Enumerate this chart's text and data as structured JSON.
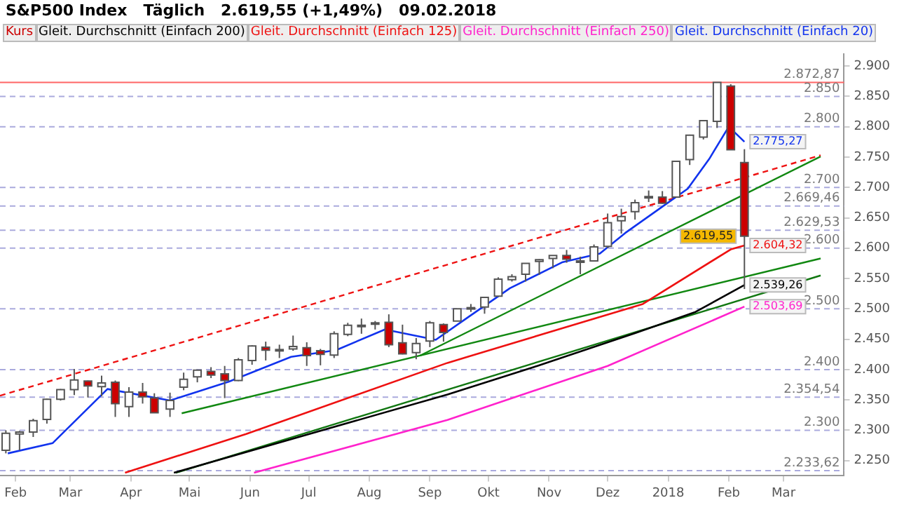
{
  "chart_data": {
    "type": "candlestick",
    "title": "S&P500 Index   Täglich   2.619,55 (+1,49%)   09.02.2018",
    "legend": "top left",
    "grid": false,
    "xlim": [
      "2017-01-24",
      "2018-04-01"
    ],
    "xticks": [
      {
        "value": "2017-02-01",
        "label": "Feb"
      },
      {
        "value": "2017-03-01",
        "label": "Mar"
      },
      {
        "value": "2017-04-01",
        "label": "Apr"
      },
      {
        "value": "2017-05-01",
        "label": "Mai"
      },
      {
        "value": "2017-06-01",
        "label": "Jun"
      },
      {
        "value": "2017-07-01",
        "label": "Jul"
      },
      {
        "value": "2017-08-01",
        "label": "Aug"
      },
      {
        "value": "2017-09-01",
        "label": "Sep"
      },
      {
        "value": "2017-10-01",
        "label": "Okt"
      },
      {
        "value": "2017-11-01",
        "label": "Nov"
      },
      {
        "value": "2017-12-01",
        "label": "Dez"
      },
      {
        "value": "2018-01-01",
        "label": "2018"
      },
      {
        "value": "2018-02-01",
        "label": "Feb"
      },
      {
        "value": "2018-03-01",
        "label": "Mar"
      }
    ],
    "ylim": [
      2225,
      2920
    ],
    "yticks": [
      {
        "value": 2250,
        "label": "2.250"
      },
      {
        "value": 2300,
        "label": "2.300"
      },
      {
        "value": 2350,
        "label": "2.350"
      },
      {
        "value": 2400,
        "label": "2.400"
      },
      {
        "value": 2450,
        "label": "2.450"
      },
      {
        "value": 2500,
        "label": "2.500"
      },
      {
        "value": 2550,
        "label": "2.550"
      },
      {
        "value": 2600,
        "label": "2.600"
      },
      {
        "value": 2650,
        "label": "2.650"
      },
      {
        "value": 2700,
        "label": "2.700"
      },
      {
        "value": 2750,
        "label": "2.750"
      },
      {
        "value": 2800,
        "label": "2.800"
      },
      {
        "value": 2850,
        "label": "2.850"
      },
      {
        "value": 2900,
        "label": "2.900"
      }
    ],
    "series": [
      {
        "name": "Kurs",
        "type": "candlestick",
        "color": "#cc0000",
        "colors": [
          "#ffffff",
          "#ffffff",
          "#ffffff",
          "#ffffff",
          "#ffffff",
          "#ffffff",
          "#cc0000",
          "#ffffff",
          "#cc0000",
          "#ffffff",
          "#cc0000",
          "#cc0000",
          "#ffffff",
          "#ffffff",
          "#ffffff",
          "#cc0000",
          "#cc0000",
          "#ffffff",
          "#ffffff",
          "#cc0000",
          "#ffffff",
          "#ffffff",
          "#cc0000",
          "#cc0000",
          "#ffffff",
          "#ffffff",
          "#cc0000",
          "#ffffff",
          "#cc0000",
          "#cc0000",
          "#ffffff",
          "#ffffff",
          "#cc0000",
          "#ffffff",
          "#ffffff",
          "#ffffff",
          "#ffffff",
          "#ffffff",
          "#ffffff",
          "#ffffff",
          "#ffffff",
          "#cc0000",
          "#ffffff",
          "#ffffff",
          "#ffffff",
          "#ffffff",
          "#ffffff",
          "#cc0000",
          "#cc0000",
          "#ffffff",
          "#ffffff",
          "#ffffff",
          "#ffffff",
          "#cc0000",
          "#cc0000"
        ],
        "x": [
          "2017-01-27",
          "2017-02-03",
          "2017-02-10",
          "2017-02-17",
          "2017-02-24",
          "2017-03-03",
          "2017-03-10",
          "2017-03-17",
          "2017-03-24",
          "2017-03-31",
          "2017-04-07",
          "2017-04-13",
          "2017-04-21",
          "2017-04-28",
          "2017-05-05",
          "2017-05-12",
          "2017-05-19",
          "2017-05-26",
          "2017-06-02",
          "2017-06-09",
          "2017-06-16",
          "2017-06-23",
          "2017-06-30",
          "2017-07-07",
          "2017-07-14",
          "2017-07-21",
          "2017-07-28",
          "2017-08-04",
          "2017-08-11",
          "2017-08-18",
          "2017-08-25",
          "2017-09-01",
          "2017-09-08",
          "2017-09-15",
          "2017-09-22",
          "2017-09-29",
          "2017-10-06",
          "2017-10-13",
          "2017-10-20",
          "2017-10-27",
          "2017-11-03",
          "2017-11-10",
          "2017-11-17",
          "2017-11-24",
          "2017-12-01",
          "2017-12-08",
          "2017-12-15",
          "2017-12-22",
          "2017-12-29",
          "2018-01-05",
          "2018-01-12",
          "2018-01-19",
          "2018-01-26",
          "2018-02-02",
          "2018-02-09"
        ],
        "ohlc": [
          [
            2267,
            2300,
            2262,
            2295
          ],
          [
            2294,
            2299,
            2267,
            2297
          ],
          [
            2297,
            2319,
            2289,
            2316
          ],
          [
            2318,
            2352,
            2311,
            2351
          ],
          [
            2351,
            2368,
            2349,
            2367
          ],
          [
            2367,
            2401,
            2358,
            2383
          ],
          [
            2381,
            2382,
            2354,
            2373
          ],
          [
            2372,
            2390,
            2356,
            2378
          ],
          [
            2379,
            2382,
            2322,
            2344
          ],
          [
            2339,
            2371,
            2322,
            2363
          ],
          [
            2363,
            2378,
            2344,
            2355
          ],
          [
            2353,
            2361,
            2329,
            2329
          ],
          [
            2335,
            2362,
            2322,
            2349
          ],
          [
            2371,
            2395,
            2366,
            2384
          ],
          [
            2388,
            2400,
            2379,
            2399
          ],
          [
            2397,
            2404,
            2386,
            2391
          ],
          [
            2393,
            2406,
            2353,
            2382
          ],
          [
            2382,
            2419,
            2381,
            2416
          ],
          [
            2415,
            2440,
            2408,
            2439
          ],
          [
            2437,
            2446,
            2415,
            2432
          ],
          [
            2432,
            2441,
            2419,
            2433
          ],
          [
            2434,
            2456,
            2431,
            2438
          ],
          [
            2436,
            2445,
            2406,
            2423
          ],
          [
            2431,
            2434,
            2407,
            2425
          ],
          [
            2424,
            2463,
            2419,
            2459
          ],
          [
            2458,
            2477,
            2455,
            2473
          ],
          [
            2473,
            2484,
            2459,
            2472
          ],
          [
            2477,
            2480,
            2466,
            2477
          ],
          [
            2478,
            2491,
            2437,
            2441
          ],
          [
            2444,
            2474,
            2425,
            2426
          ],
          [
            2428,
            2452,
            2417,
            2443
          ],
          [
            2447,
            2480,
            2437,
            2477
          ],
          [
            2474,
            2476,
            2446,
            2461
          ],
          [
            2480,
            2500,
            2480,
            2500
          ],
          [
            2502,
            2508,
            2495,
            2502
          ],
          [
            2503,
            2520,
            2492,
            2519
          ],
          [
            2521,
            2552,
            2520,
            2549
          ],
          [
            2548,
            2557,
            2545,
            2553
          ],
          [
            2557,
            2575,
            2545,
            2575
          ],
          [
            2578,
            2582,
            2556,
            2581
          ],
          [
            2583,
            2588,
            2567,
            2588
          ],
          [
            2588,
            2597,
            2576,
            2582
          ],
          [
            2579,
            2586,
            2557,
            2579
          ],
          [
            2579,
            2606,
            2579,
            2602
          ],
          [
            2603,
            2657,
            2600,
            2642
          ],
          [
            2645,
            2665,
            2624,
            2652
          ],
          [
            2660,
            2680,
            2647,
            2675
          ],
          [
            2685,
            2695,
            2676,
            2683
          ],
          [
            2684,
            2694,
            2673,
            2674
          ],
          [
            2684,
            2743,
            2683,
            2743
          ],
          [
            2746,
            2787,
            2737,
            2786
          ],
          [
            2783,
            2810,
            2779,
            2810
          ],
          [
            2809,
            2872.87,
            2798,
            2872.87
          ],
          [
            2867,
            2870,
            2762,
            2762
          ],
          [
            2741,
            2763,
            2532.69,
            2619.55
          ]
        ]
      },
      {
        "name": "Gleit. Durchschnitt (Einfach 200)",
        "type": "line",
        "color": "#000000",
        "x": [
          "2017-04-23",
          "2017-09-10",
          "2017-10-26",
          "2017-12-15",
          "2018-01-15",
          "2018-02-09"
        ],
        "values": [
          2230,
          2359,
          2406,
          2460,
          2495,
          2539.26
        ],
        "value_labels": [
          null,
          null,
          null,
          null,
          null,
          "2.539,26"
        ]
      },
      {
        "name": "Gleit. Durchschnitt (Einfach 125)",
        "type": "line",
        "color": "#ee1111",
        "x": [
          "2017-03-29",
          "2017-05-30",
          "2017-09-10",
          "2017-12-19",
          "2018-02-02",
          "2018-02-09"
        ],
        "values": [
          2230,
          2294,
          2411,
          2508,
          2598,
          2604.32
        ],
        "value_labels": [
          null,
          null,
          null,
          null,
          null,
          "2.604,32"
        ]
      },
      {
        "name": "Gleit. Durchschnitt (Einfach 250)",
        "type": "line",
        "color": "#ff22cc",
        "x": [
          "2017-06-03",
          "2017-09-10",
          "2017-12-01",
          "2018-02-09"
        ],
        "values": [
          2230,
          2317,
          2406,
          2503.69
        ],
        "value_labels": [
          null,
          null,
          null,
          "2.503,69"
        ]
      },
      {
        "name": "Gleit. Durchschnitt (Einfach 20)",
        "type": "line",
        "color": "#1133ee",
        "x": [
          "2017-01-28",
          "2017-02-20",
          "2017-03-20",
          "2017-04-21",
          "2017-05-21",
          "2017-06-22",
          "2017-07-15",
          "2017-08-09",
          "2017-09-04",
          "2017-09-20",
          "2017-10-12",
          "2017-11-08",
          "2017-11-27",
          "2017-12-10",
          "2017-12-28",
          "2018-01-11",
          "2018-01-22",
          "2018-02-01",
          "2018-02-09"
        ],
        "values": [
          2262,
          2279,
          2368,
          2349,
          2380,
          2421,
          2432,
          2466,
          2449,
          2485,
          2534,
          2577,
          2591,
          2625,
          2666,
          2698,
          2747,
          2800,
          2775.27
        ],
        "value_labels": [
          null,
          null,
          null,
          null,
          null,
          null,
          null,
          null,
          null,
          null,
          null,
          null,
          null,
          null,
          null,
          null,
          null,
          null,
          "2.775,27"
        ]
      },
      {
        "type": "line",
        "color": "#ee1111",
        "line_style": "dashed",
        "x": [
          "2017-01-24",
          "2018-03-20"
        ],
        "values": [
          2357,
          2753
        ]
      },
      {
        "type": "line",
        "color": "#118811",
        "x": [
          "2017-04-27",
          "2018-03-20"
        ],
        "values": [
          2328,
          2583
        ]
      },
      {
        "type": "line",
        "color": "#118811",
        "x": [
          "2017-08-27",
          "2018-03-20"
        ],
        "values": [
          2423,
          2751
        ]
      },
      {
        "type": "line",
        "color": "#117711",
        "x": [
          "2017-04-24",
          "2018-03-20"
        ],
        "values": [
          2230,
          2555
        ]
      }
    ],
    "ref_lines": [
      {
        "axis": "y",
        "value": 2872.87,
        "label": "2.872,87",
        "color": "#ff6666",
        "line_style": "solid"
      },
      {
        "axis": "y",
        "value": 2850,
        "label": "2.850",
        "color": "#aaaadd",
        "line_style": "dashed"
      },
      {
        "axis": "y",
        "value": 2800,
        "label": "2.800",
        "color": "#aaaadd",
        "line_style": "dashed"
      },
      {
        "axis": "y",
        "value": 2700,
        "label": "2.700",
        "color": "#aaaadd",
        "line_style": "dashed"
      },
      {
        "axis": "y",
        "value": 2669.46,
        "label": "2.669,46",
        "color": "#aaaadd",
        "line_style": "dashed"
      },
      {
        "axis": "y",
        "value": 2629.53,
        "label": "2.629,53",
        "color": "#aaaadd",
        "line_style": "dashed"
      },
      {
        "axis": "y",
        "value": 2600,
        "label": "2.600",
        "color": "#aaaadd",
        "line_style": "dashed"
      },
      {
        "axis": "y",
        "value": 2500,
        "label": "2.500",
        "color": "#aaaadd",
        "line_style": "dashed"
      },
      {
        "axis": "y",
        "value": 2400,
        "label": "2.400",
        "color": "#aaaadd",
        "line_style": "dashed"
      },
      {
        "axis": "y",
        "value": 2354.54,
        "label": "2.354,54",
        "color": "#aaaadd",
        "line_style": "dashed"
      },
      {
        "axis": "y",
        "value": 2300,
        "label": "2.300",
        "color": "#aaaadd",
        "line_style": "dashed"
      },
      {
        "axis": "y",
        "value": 2233.62,
        "label": "2.233,62",
        "color": "#aaaadd",
        "line_style": "dashed"
      }
    ],
    "annotations": [
      {
        "text": "2.619,55",
        "x": "2018-02-09",
        "y": 2619.55
      }
    ]
  }
}
